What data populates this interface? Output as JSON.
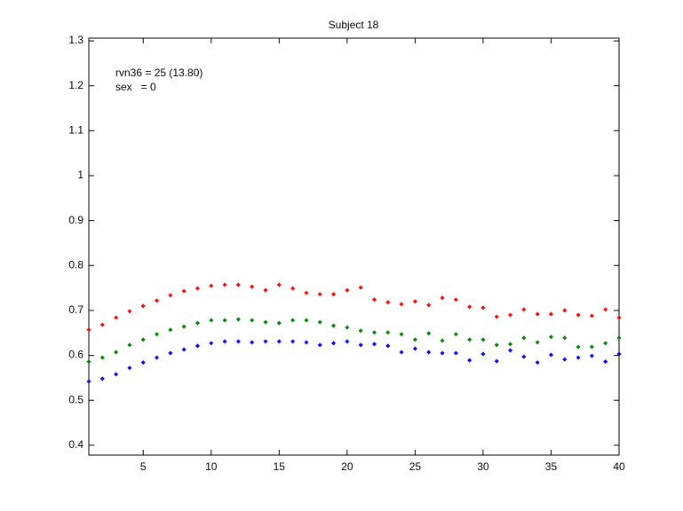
{
  "chart_data": {
    "type": "scatter",
    "title": "Subject 18",
    "annotations": [
      "rvn36 = 25 (13.80)",
      "sex   = 0"
    ],
    "x": [
      1,
      2,
      3,
      4,
      5,
      6,
      7,
      8,
      9,
      10,
      11,
      12,
      13,
      14,
      15,
      16,
      17,
      18,
      19,
      20,
      21,
      22,
      23,
      24,
      25,
      26,
      27,
      28,
      29,
      30,
      31,
      32,
      33,
      34,
      35,
      36,
      37,
      38,
      39,
      40
    ],
    "series": [
      {
        "color": "#ff0000",
        "values": [
          0.657,
          0.668,
          0.684,
          0.698,
          0.71,
          0.722,
          0.734,
          0.743,
          0.749,
          0.755,
          0.757,
          0.757,
          0.753,
          0.745,
          0.757,
          0.749,
          0.739,
          0.736,
          0.736,
          0.745,
          0.751,
          0.724,
          0.718,
          0.714,
          0.72,
          0.712,
          0.728,
          0.724,
          0.708,
          0.706,
          0.686,
          0.69,
          0.702,
          0.692,
          0.692,
          0.7,
          0.69,
          0.688,
          0.702,
          0.684
        ]
      },
      {
        "color": "#008000",
        "values": [
          0.586,
          0.595,
          0.607,
          0.623,
          0.635,
          0.647,
          0.657,
          0.664,
          0.672,
          0.678,
          0.678,
          0.68,
          0.678,
          0.674,
          0.672,
          0.678,
          0.678,
          0.674,
          0.666,
          0.662,
          0.655,
          0.651,
          0.651,
          0.647,
          0.635,
          0.649,
          0.633,
          0.647,
          0.635,
          0.635,
          0.623,
          0.625,
          0.639,
          0.629,
          0.641,
          0.639,
          0.619,
          0.619,
          0.627,
          0.639
        ]
      },
      {
        "color": "#0000ff",
        "values": [
          0.542,
          0.548,
          0.558,
          0.572,
          0.584,
          0.595,
          0.605,
          0.613,
          0.621,
          0.627,
          0.631,
          0.631,
          0.629,
          0.631,
          0.631,
          0.631,
          0.629,
          0.623,
          0.627,
          0.631,
          0.623,
          0.625,
          0.621,
          0.607,
          0.615,
          0.607,
          0.605,
          0.605,
          0.589,
          0.603,
          0.587,
          0.611,
          0.597,
          0.584,
          0.601,
          0.591,
          0.595,
          0.599,
          0.586,
          0.603
        ]
      }
    ],
    "xlim": [
      1,
      40
    ],
    "xticks": [
      5,
      10,
      15,
      20,
      25,
      30,
      35,
      40
    ],
    "ylim": [
      0.378,
      1.306
    ],
    "yticks": [
      0.4,
      0.5,
      0.6,
      0.7,
      0.8,
      0.9,
      1,
      1.1,
      1.2,
      1.3
    ]
  }
}
